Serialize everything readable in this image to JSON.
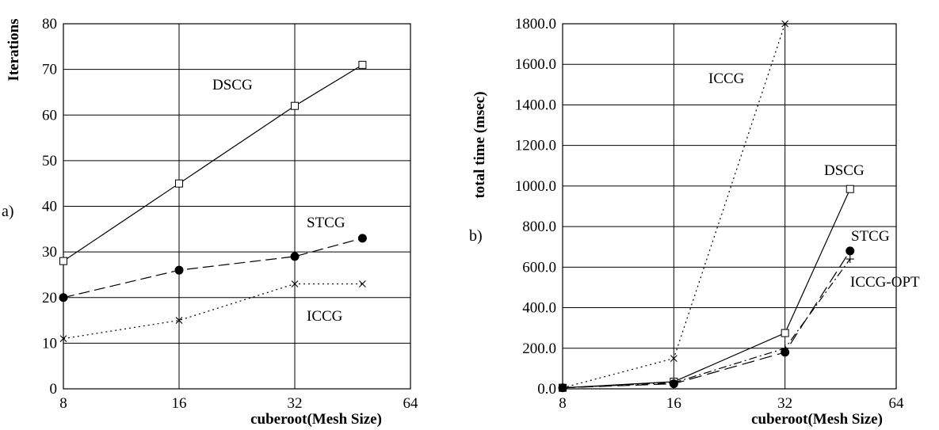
{
  "chart_data": [
    {
      "type": "line",
      "panel_label": "a)",
      "xlabel": "cuberoot(Mesh Size)",
      "ylabel": "Iterations",
      "x_scale": "log2",
      "xlim": [
        8,
        64
      ],
      "ylim": [
        0,
        80
      ],
      "x_ticks": [
        8,
        16,
        32,
        64
      ],
      "x_tick_labels": [
        "8",
        "16",
        "32",
        "64"
      ],
      "y_ticks": [
        0,
        10,
        20,
        30,
        40,
        50,
        60,
        70,
        80
      ],
      "y_tick_labels": [
        "0",
        "10",
        "20",
        "30",
        "40",
        "50",
        "60",
        "70",
        "80"
      ],
      "grid": true,
      "series": [
        {
          "name": "DSCG",
          "x": [
            8,
            16,
            32,
            48
          ],
          "y": [
            28,
            45,
            62,
            71
          ],
          "line_style": "solid",
          "marker": "square"
        },
        {
          "name": "STCG",
          "x": [
            8,
            16,
            32,
            48
          ],
          "y": [
            20,
            26,
            29,
            33
          ],
          "line_style": "dashed",
          "marker": "filled-circle"
        },
        {
          "name": "ICCG",
          "x": [
            8,
            16,
            32,
            48
          ],
          "y": [
            11,
            15,
            23,
            23
          ],
          "line_style": "dotted",
          "marker": "x"
        }
      ]
    },
    {
      "type": "line",
      "panel_label": "b)",
      "xlabel": "cuberoot(Mesh Size)",
      "ylabel": "total time (msec)",
      "x_scale": "log2",
      "xlim": [
        8,
        64
      ],
      "ylim": [
        0,
        1800
      ],
      "x_ticks": [
        8,
        16,
        32,
        64
      ],
      "x_tick_labels": [
        "8",
        "16",
        "32",
        "64"
      ],
      "y_ticks": [
        0,
        200,
        400,
        600,
        800,
        1000,
        1200,
        1400,
        1600,
        1800
      ],
      "y_tick_labels": [
        "0.0",
        "200.0",
        "400.0",
        "600.0",
        "800.0",
        "1000.0",
        "1200.0",
        "1400.0",
        "1600.0",
        "1800.0"
      ],
      "grid": true,
      "series": [
        {
          "name": "ICCG",
          "x": [
            8,
            16,
            32
          ],
          "y": [
            5,
            150,
            1800
          ],
          "line_style": "dotted",
          "marker": "x"
        },
        {
          "name": "DSCG",
          "x": [
            8,
            16,
            32,
            48
          ],
          "y": [
            5,
            35,
            275,
            985
          ],
          "line_style": "solid",
          "marker": "square"
        },
        {
          "name": "STCG",
          "x": [
            8,
            16,
            32,
            48
          ],
          "y": [
            5,
            25,
            180,
            680
          ],
          "line_style": "long-dash",
          "marker": "filled-circle"
        },
        {
          "name": "ICCG-OPT",
          "x": [
            8,
            16,
            32,
            48
          ],
          "y": [
            5,
            30,
            200,
            640
          ],
          "line_style": "dash-dot",
          "marker": "plus"
        }
      ]
    }
  ]
}
